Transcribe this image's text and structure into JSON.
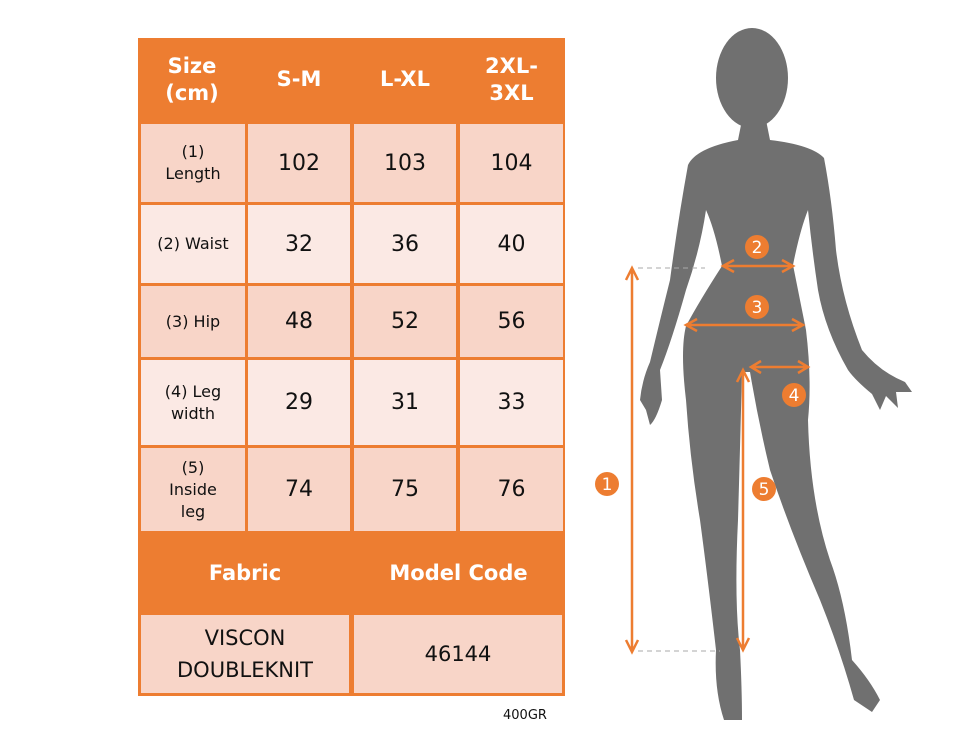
{
  "table": {
    "header": [
      "Size\n(cm)",
      "S-M",
      "L-XL",
      "2XL-\n3XL"
    ],
    "rows": [
      {
        "label": "(1)\nLength",
        "values": [
          "102",
          "103",
          "104"
        ]
      },
      {
        "label": "(2) Waist",
        "values": [
          "32",
          "36",
          "40"
        ]
      },
      {
        "label": "(3) Hip",
        "values": [
          "48",
          "52",
          "56"
        ]
      },
      {
        "label": "(4) Leg\nwidth",
        "values": [
          "29",
          "31",
          "33"
        ]
      },
      {
        "label": "(5)\nInside\nleg",
        "values": [
          "74",
          "75",
          "76"
        ]
      }
    ],
    "fabric_label": "Fabric",
    "model_code_label": "Model Code",
    "fabric_value": "VISCON\nDOUBLEKNIT",
    "model_code_value": "46144"
  },
  "weight": "400GR",
  "figure": {
    "markers": [
      "1",
      "2",
      "3",
      "4",
      "5"
    ],
    "colors": {
      "accent": "#ed7d31",
      "silhouette": "#707070",
      "row_dark": "#f8d5c8",
      "row_light": "#fbe9e4"
    }
  }
}
